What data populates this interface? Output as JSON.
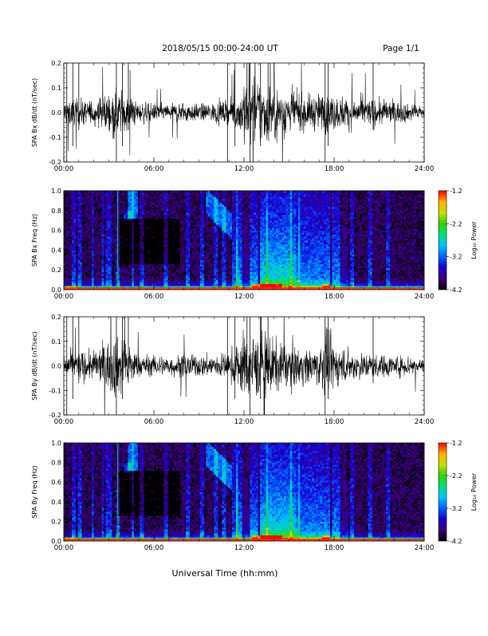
{
  "header": {
    "title": "2018/05/15  00:00-24:00 UT",
    "page": "Page 1/1"
  },
  "footer": {
    "xlabel": "Universal Time (hh:mm)"
  },
  "colorbar": {
    "label": "Log₁₀ Power",
    "ticks": [
      "-1.2",
      "-2.2",
      "-3.2",
      "-4.2"
    ],
    "range": [
      -4.2,
      -1.2
    ],
    "colors": [
      "#000000",
      "#3a0070",
      "#1a00d0",
      "#0060ff",
      "#00c0ff",
      "#00e080",
      "#30d000",
      "#c8e000",
      "#ffb000",
      "#ff0000"
    ]
  },
  "chart_data": [
    {
      "type": "line",
      "ylabel": "SPA Bx dB/dt (nT/sec)",
      "ylim": [
        -0.2,
        0.2
      ],
      "yticks": [
        "0.2",
        "0.1",
        "0.0",
        "-0.1",
        "-0.2"
      ],
      "xlim": [
        "00:00",
        "24:00"
      ],
      "xticks": [
        "00:00",
        "06:00",
        "12:00",
        "18:00",
        "24:00"
      ],
      "envelope": {
        "x_hours": [
          0,
          1,
          2,
          3,
          3.7,
          4.5,
          5,
          6,
          7,
          8,
          9,
          10,
          11,
          11.5,
          12,
          12.5,
          13,
          14,
          14.5,
          15,
          16,
          17,
          17.5,
          18,
          19,
          20,
          21,
          22,
          23,
          24
        ],
        "amplitude": [
          0.1,
          0.09,
          0.08,
          0.14,
          0.16,
          0.1,
          0.07,
          0.06,
          0.06,
          0.07,
          0.06,
          0.07,
          0.08,
          0.12,
          0.22,
          0.22,
          0.22,
          0.2,
          0.16,
          0.15,
          0.12,
          0.12,
          0.14,
          0.12,
          0.1,
          0.1,
          0.09,
          0.08,
          0.06,
          0.05
        ]
      }
    },
    {
      "type": "heatmap",
      "ylabel": "SPA Bx Freq (Hz)",
      "ylim": [
        0,
        1.0
      ],
      "yticks": [
        "1.0",
        "0.8",
        "0.6",
        "0.4",
        "0.2",
        "0.0"
      ],
      "xlim": [
        "00:00",
        "24:00"
      ],
      "xticks": [
        "00:00",
        "06:00",
        "12:00",
        "18:00",
        "24:00"
      ],
      "zlim": [
        -4.2,
        -1.2
      ]
    },
    {
      "type": "line",
      "ylabel": "SPA By dB/dt (nT/sec)",
      "ylim": [
        -0.2,
        0.2
      ],
      "yticks": [
        "0.2",
        "0.1",
        "0.0",
        "-0.1",
        "-0.2"
      ],
      "xlim": [
        "00:00",
        "24:00"
      ],
      "xticks": [
        "00:00",
        "06:00",
        "12:00",
        "18:00",
        "24:00"
      ],
      "envelope": {
        "x_hours": [
          0,
          1,
          2,
          3,
          3.7,
          4.5,
          5,
          6,
          7,
          8,
          9,
          10,
          11,
          11.5,
          12,
          12.5,
          13,
          14,
          14.5,
          15,
          16,
          17,
          17.5,
          18,
          19,
          20,
          21,
          22,
          23,
          24
        ],
        "amplitude": [
          0.09,
          0.1,
          0.1,
          0.18,
          0.22,
          0.14,
          0.08,
          0.07,
          0.07,
          0.08,
          0.07,
          0.08,
          0.09,
          0.15,
          0.22,
          0.22,
          0.22,
          0.2,
          0.16,
          0.15,
          0.12,
          0.13,
          0.22,
          0.15,
          0.1,
          0.09,
          0.08,
          0.07,
          0.07,
          0.06
        ]
      }
    },
    {
      "type": "heatmap",
      "ylabel": "SPA By Freq (Hz)",
      "ylim": [
        0,
        1.0
      ],
      "yticks": [
        "1.0",
        "0.8",
        "0.6",
        "0.4",
        "0.2",
        "0.0"
      ],
      "xlim": [
        "00:00",
        "24:00"
      ],
      "xticks": [
        "00:00",
        "06:00",
        "12:00",
        "18:00",
        "24:00"
      ],
      "zlim": [
        -4.2,
        -1.2
      ]
    }
  ]
}
